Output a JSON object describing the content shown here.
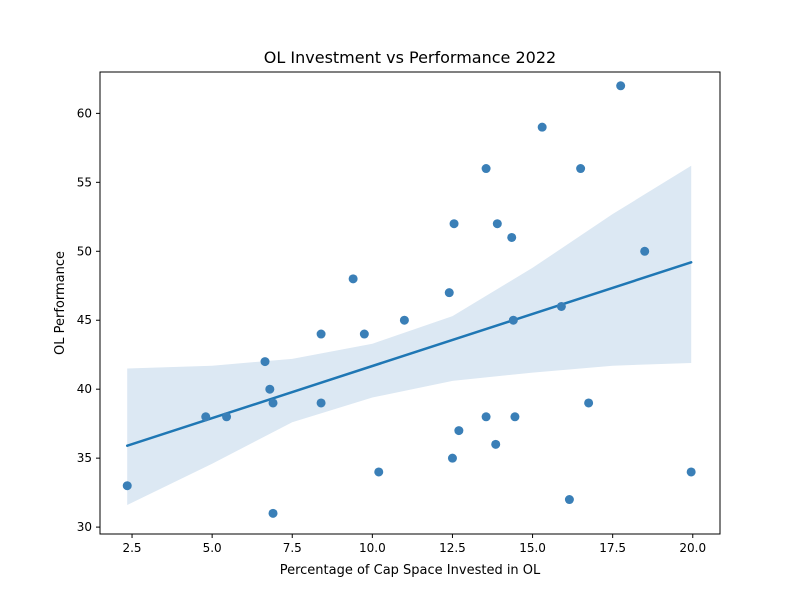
{
  "chart_data": {
    "type": "scatter",
    "title": "OL Investment vs Performance 2022",
    "xlabel": "Percentage of Cap Space Invested in OL",
    "ylabel": "OL Performance",
    "xlim": [
      1.5,
      20.85
    ],
    "ylim": [
      29.5,
      63.0
    ],
    "x_ticks": [
      2.5,
      5.0,
      7.5,
      10.0,
      12.5,
      15.0,
      17.5,
      20.0
    ],
    "x_tick_labels": [
      "2.5",
      "5.0",
      "7.5",
      "10.0",
      "12.5",
      "15.0",
      "17.5",
      "20.0"
    ],
    "y_ticks": [
      30,
      35,
      40,
      45,
      50,
      55,
      60
    ],
    "y_tick_labels": [
      "30",
      "35",
      "40",
      "45",
      "50",
      "55",
      "60"
    ],
    "grid": false,
    "point_color": "#3a7fb7",
    "line_color": "#1f77b4",
    "band_color": "#dce8f3",
    "points": [
      {
        "x": 2.35,
        "y": 33
      },
      {
        "x": 4.8,
        "y": 38
      },
      {
        "x": 5.45,
        "y": 38
      },
      {
        "x": 6.65,
        "y": 42
      },
      {
        "x": 6.8,
        "y": 40
      },
      {
        "x": 6.9,
        "y": 39
      },
      {
        "x": 6.9,
        "y": 31
      },
      {
        "x": 8.4,
        "y": 44
      },
      {
        "x": 8.4,
        "y": 39
      },
      {
        "x": 9.4,
        "y": 48
      },
      {
        "x": 9.75,
        "y": 44
      },
      {
        "x": 10.2,
        "y": 34
      },
      {
        "x": 11.0,
        "y": 45
      },
      {
        "x": 12.4,
        "y": 47
      },
      {
        "x": 12.5,
        "y": 35
      },
      {
        "x": 12.55,
        "y": 52
      },
      {
        "x": 12.7,
        "y": 37
      },
      {
        "x": 13.55,
        "y": 56
      },
      {
        "x": 13.55,
        "y": 38
      },
      {
        "x": 13.85,
        "y": 36
      },
      {
        "x": 13.9,
        "y": 52
      },
      {
        "x": 14.35,
        "y": 51
      },
      {
        "x": 14.4,
        "y": 45
      },
      {
        "x": 14.45,
        "y": 38
      },
      {
        "x": 15.3,
        "y": 59
      },
      {
        "x": 15.9,
        "y": 46
      },
      {
        "x": 16.15,
        "y": 32
      },
      {
        "x": 16.5,
        "y": 56
      },
      {
        "x": 16.75,
        "y": 39
      },
      {
        "x": 17.75,
        "y": 62
      },
      {
        "x": 18.5,
        "y": 50
      },
      {
        "x": 19.95,
        "y": 34
      }
    ],
    "regression": {
      "line": [
        [
          2.35,
          35.9
        ],
        [
          19.95,
          49.2
        ]
      ],
      "ci_upper": [
        [
          2.35,
          41.5
        ],
        [
          5.0,
          41.7
        ],
        [
          7.5,
          42.2
        ],
        [
          10.0,
          43.3
        ],
        [
          12.5,
          45.3
        ],
        [
          15.0,
          48.8
        ],
        [
          17.5,
          52.7
        ],
        [
          19.95,
          56.2
        ]
      ],
      "ci_lower": [
        [
          2.35,
          31.6
        ],
        [
          5.0,
          34.6
        ],
        [
          7.5,
          37.6
        ],
        [
          10.0,
          39.4
        ],
        [
          12.5,
          40.6
        ],
        [
          15.0,
          41.2
        ],
        [
          17.5,
          41.7
        ],
        [
          19.95,
          41.9
        ]
      ]
    }
  }
}
